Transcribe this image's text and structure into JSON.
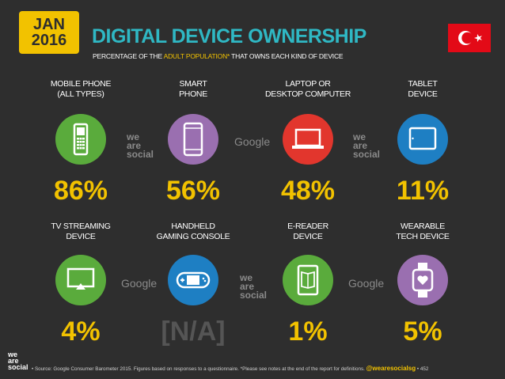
{
  "header": {
    "date_month": "JAN",
    "date_year": "2016",
    "title": "DIGITAL DEVICE OWNERSHIP",
    "subtitle_pre": "PERCENTAGE OF THE ",
    "subtitle_highlight": "ADULT POPULATION*",
    "subtitle_post": " THAT OWNS EACH KIND OF DEVICE",
    "flag_country": "turkey-flag"
  },
  "colors": {
    "background": "#2e2e2e",
    "title": "#2fb8c4",
    "accent_yellow": "#f2c200",
    "green": "#5aab3c",
    "purple": "#9a6fb0",
    "red": "#e2362d",
    "blue": "#1e7fc3"
  },
  "chart_data": {
    "type": "table",
    "title": "DIGITAL DEVICE OWNERSHIP",
    "subtitle": "PERCENTAGE OF THE ADULT POPULATION* THAT OWNS EACH KIND OF DEVICE",
    "categories": [
      "MOBILE PHONE (ALL TYPES)",
      "SMART PHONE",
      "LAPTOP OR DESKTOP COMPUTER",
      "TABLET DEVICE",
      "TV STREAMING DEVICE",
      "HANDHELD GAMING CONSOLE",
      "E-READER DEVICE",
      "WEARABLE TECH DEVICE"
    ],
    "values": [
      86,
      56,
      48,
      11,
      4,
      null,
      1,
      5
    ],
    "devices": [
      {
        "label_1": "MOBILE PHONE",
        "label_2": "(ALL TYPES)",
        "value_text": "86%",
        "icon": "mobile-phone-icon",
        "color": "#5aab3c"
      },
      {
        "label_1": "SMART",
        "label_2": "PHONE",
        "value_text": "56%",
        "icon": "smartphone-icon",
        "color": "#9a6fb0"
      },
      {
        "label_1": "LAPTOP OR",
        "label_2": "DESKTOP COMPUTER",
        "value_text": "48%",
        "icon": "laptop-icon",
        "color": "#e2362d"
      },
      {
        "label_1": "TABLET",
        "label_2": "DEVICE",
        "value_text": "11%",
        "icon": "tablet-icon",
        "color": "#1e7fc3"
      },
      {
        "label_1": "TV STREAMING",
        "label_2": "DEVICE",
        "value_text": "4%",
        "icon": "tv-streaming-icon",
        "color": "#5aab3c"
      },
      {
        "label_1": "HANDHELD",
        "label_2": "GAMING CONSOLE",
        "value_text": "[N/A]",
        "icon": "gaming-console-icon",
        "color": "#1e7fc3"
      },
      {
        "label_1": "E-READER",
        "label_2": "DEVICE",
        "value_text": "1%",
        "icon": "e-reader-icon",
        "color": "#5aab3c"
      },
      {
        "label_1": "WEARABLE",
        "label_2": "TECH DEVICE",
        "value_text": "5%",
        "icon": "wearable-icon",
        "color": "#9a6fb0"
      }
    ]
  },
  "brand": {
    "google": "Google",
    "was_1": "we",
    "was_2": "are",
    "was_3": "social"
  },
  "footer": {
    "source": "• Source: Google Consumer Barometer 2015. Figures based on responses to a questionnaire. *Please see notes at the end of the report for definitions. ",
    "handle": "@wearesocialsg",
    "page": " • 452"
  }
}
